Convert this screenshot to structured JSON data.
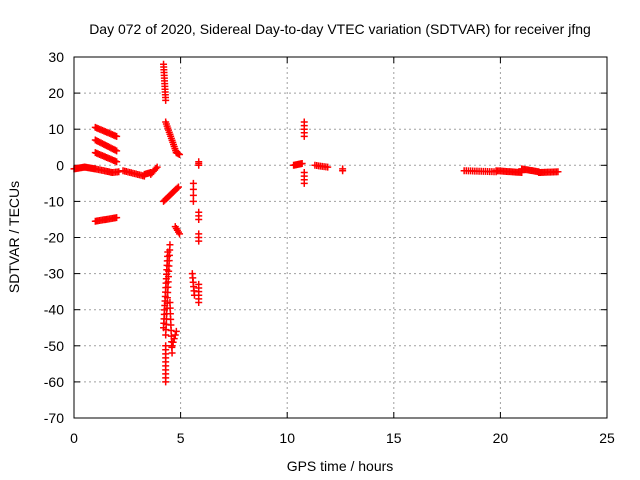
{
  "chart_data": {
    "type": "scatter",
    "title": "Day 072 of 2020, Sidereal Day-to-day VTEC variation (SDTVAR) for receiver jfng",
    "xlabel": "GPS time / hours",
    "ylabel": "SDTVAR / TECUs",
    "xlim": [
      0,
      25
    ],
    "ylim": [
      -70,
      30
    ],
    "xticks": [
      "0",
      "5",
      "10",
      "15",
      "20",
      "25"
    ],
    "yticks": [
      "30",
      "20",
      "10",
      "0",
      "-10",
      "-20",
      "-30",
      "-40",
      "-50",
      "-60",
      "-70"
    ],
    "grid": true,
    "marker": "plus",
    "color": "#ff0000",
    "series": [
      {
        "name": "SDTVAR",
        "segments": [
          [
            0.0,
            -1.0,
            0.5,
            -0.5,
            12
          ],
          [
            0.5,
            -0.5,
            1.0,
            -1.0,
            12
          ],
          [
            1.0,
            -1.0,
            1.8,
            -2.0,
            12
          ],
          [
            1.8,
            -2.0,
            2.1,
            -1.8,
            5
          ],
          [
            1.0,
            10.5,
            2.0,
            8.0,
            16
          ],
          [
            1.0,
            7.0,
            2.0,
            4.0,
            16
          ],
          [
            1.0,
            3.5,
            2.0,
            1.0,
            16
          ],
          [
            1.0,
            -15.5,
            2.0,
            -14.5,
            16
          ],
          [
            2.3,
            -1.5,
            3.3,
            -3.0,
            14
          ],
          [
            3.3,
            -2.5,
            3.6,
            -2.0,
            6
          ],
          [
            3.6,
            -2.5,
            3.9,
            -0.5,
            6
          ],
          [
            4.2,
            28.0,
            4.3,
            18.0,
            14
          ],
          [
            4.3,
            12.0,
            4.8,
            3.5,
            16
          ],
          [
            4.8,
            3.5,
            4.95,
            3.0,
            4
          ],
          [
            4.2,
            -10.0,
            4.9,
            -6.0,
            14
          ],
          [
            4.4,
            -24.0,
            4.2,
            -45.0,
            18
          ],
          [
            4.5,
            -22.0,
            4.3,
            -47.0,
            18
          ],
          [
            4.3,
            -50.0,
            4.3,
            -60.0,
            10
          ],
          [
            4.5,
            -38.0,
            4.6,
            -52.0,
            10
          ],
          [
            4.8,
            -46.0,
            4.6,
            -50.0,
            5
          ],
          [
            4.75,
            -17.0,
            4.95,
            -19.0,
            5
          ],
          [
            5.6,
            -5.0,
            5.6,
            -10.0,
            4
          ],
          [
            5.55,
            -30.0,
            5.65,
            -36.0,
            6
          ],
          [
            5.85,
            1.0,
            5.85,
            0.0,
            3
          ],
          [
            5.85,
            -13.0,
            5.85,
            -15.0,
            3
          ],
          [
            5.85,
            -19.0,
            5.85,
            -21.0,
            3
          ],
          [
            5.85,
            -33.0,
            5.85,
            -38.0,
            6
          ],
          [
            10.3,
            0.0,
            10.7,
            0.5,
            10
          ],
          [
            10.8,
            12.0,
            10.8,
            8.0,
            5
          ],
          [
            10.8,
            -2.0,
            10.8,
            -5.0,
            4
          ],
          [
            11.3,
            0.0,
            11.9,
            -0.5,
            8
          ],
          [
            12.6,
            -1.0,
            12.6,
            -1.5,
            2
          ],
          [
            18.3,
            -1.5,
            19.8,
            -1.8,
            16
          ],
          [
            19.8,
            -1.5,
            21.0,
            -2.0,
            18
          ],
          [
            21.0,
            -1.0,
            21.8,
            -1.8,
            14
          ],
          [
            21.8,
            -2.0,
            22.7,
            -1.8,
            14
          ]
        ]
      }
    ]
  }
}
